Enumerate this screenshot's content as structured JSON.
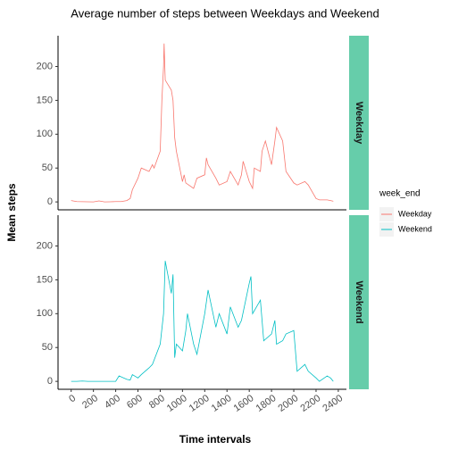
{
  "chart_data": {
    "type": "line",
    "title": "Average number of steps between Weekdays and Weekend",
    "x_label": "Time intervals",
    "y_label": "Mean steps",
    "legend_title": "week_end",
    "xlim": [
      -118,
      2473
    ],
    "xticks": [
      0,
      200,
      400,
      600,
      800,
      1000,
      1200,
      1400,
      1600,
      1800,
      2000,
      2200,
      2400
    ],
    "ylim": [
      -11.7,
      245.5
    ],
    "yticks": [
      0,
      50,
      100,
      150,
      200
    ],
    "strip_color": "#66cdaa",
    "series": [
      {
        "name": "Weekday",
        "color": "#F8766D",
        "x": [
          0,
          50,
          100,
          150,
          200,
          250,
          300,
          350,
          400,
          450,
          500,
          530,
          550,
          600,
          630,
          700,
          730,
          745,
          800,
          815,
          830,
          835,
          845,
          900,
          915,
          930,
          945,
          1000,
          1015,
          1030,
          1100,
          1130,
          1200,
          1215,
          1230,
          1300,
          1330,
          1400,
          1430,
          1500,
          1530,
          1545,
          1600,
          1630,
          1645,
          1700,
          1715,
          1745,
          1800,
          1830,
          1845,
          1900,
          1930,
          2000,
          2030,
          2100,
          2130,
          2200,
          2230,
          2300,
          2330,
          2355
        ],
        "values": [
          2,
          0.5,
          0.3,
          0.2,
          0,
          1.5,
          0,
          0.2,
          0.5,
          0.5,
          2,
          5,
          18,
          35,
          50,
          45,
          55,
          50,
          75,
          150,
          200,
          234,
          180,
          165,
          150,
          95,
          75,
          30,
          40,
          28,
          20,
          35,
          40,
          65,
          55,
          35,
          25,
          30,
          45,
          25,
          40,
          60,
          30,
          20,
          50,
          45,
          75,
          90,
          55,
          90,
          110,
          90,
          45,
          28,
          25,
          30,
          25,
          5,
          3,
          3,
          2,
          1
        ]
      },
      {
        "name": "Weekend",
        "color": "#00BFC4",
        "x": [
          0,
          50,
          100,
          150,
          200,
          300,
          400,
          430,
          500,
          530,
          550,
          600,
          630,
          700,
          730,
          800,
          830,
          845,
          900,
          915,
          930,
          945,
          1000,
          1030,
          1045,
          1100,
          1130,
          1200,
          1230,
          1300,
          1330,
          1400,
          1430,
          1500,
          1530,
          1600,
          1615,
          1630,
          1700,
          1730,
          1800,
          1830,
          1845,
          1900,
          1930,
          2000,
          2030,
          2100,
          2130,
          2200,
          2230,
          2300,
          2330,
          2355
        ],
        "values": [
          0,
          0,
          0.5,
          0,
          0,
          0,
          0,
          8,
          3,
          2,
          10,
          5,
          10,
          20,
          25,
          55,
          100,
          178,
          130,
          158,
          35,
          55,
          45,
          75,
          100,
          55,
          40,
          100,
          135,
          80,
          100,
          70,
          110,
          80,
          90,
          145,
          155,
          100,
          120,
          60,
          70,
          90,
          55,
          60,
          70,
          75,
          15,
          25,
          15,
          5,
          0,
          8,
          5,
          0
        ]
      }
    ]
  }
}
